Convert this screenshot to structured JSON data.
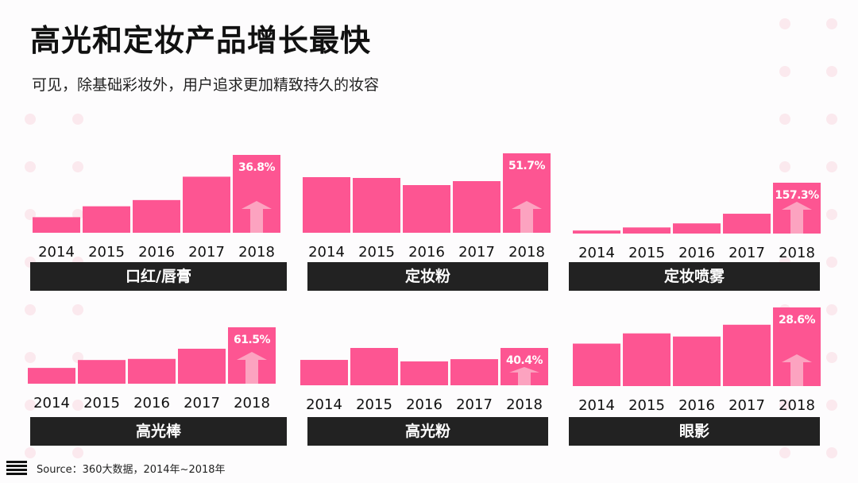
{
  "header": {
    "title": "高光和定妆产品增长最快",
    "subtitle": "可见，除基础彩妆外，用户追求更加精致持久的妆容"
  },
  "footer": {
    "icon": "menu-lines-icon",
    "source": "Source：360大数据，2014年~2018年"
  },
  "colors": {
    "bar": "#fd5592",
    "arrow": "#fca3c0",
    "label_bg": "#222222",
    "dot": "#fbe9ee"
  },
  "chart_data": [
    {
      "type": "bar",
      "title": "口红/唇膏",
      "categories": [
        "2014",
        "2015",
        "2016",
        "2017",
        "2018"
      ],
      "values": [
        20,
        34,
        42,
        72,
        100
      ],
      "units": "relative index (2018 = 100)",
      "annotation": "36.8%",
      "ylim": [
        0,
        100
      ],
      "grid": false
    },
    {
      "type": "bar",
      "title": "定妆粉",
      "categories": [
        "2014",
        "2015",
        "2016",
        "2017",
        "2018"
      ],
      "values": [
        70,
        69,
        60,
        65,
        100
      ],
      "units": "relative index (2018 = 100)",
      "annotation": "51.7%",
      "ylim": [
        0,
        100
      ],
      "grid": false
    },
    {
      "type": "bar",
      "title": "定妆喷雾",
      "categories": [
        "2014",
        "2015",
        "2016",
        "2017",
        "2018"
      ],
      "values": [
        6,
        12,
        20,
        39,
        100
      ],
      "units": "relative index (2018 = 100)",
      "annotation": "157.3%",
      "ylim": [
        0,
        100
      ],
      "grid": false
    },
    {
      "type": "bar",
      "title": "高光棒",
      "categories": [
        "2014",
        "2015",
        "2016",
        "2017",
        "2018"
      ],
      "values": [
        28,
        42,
        44,
        62,
        100
      ],
      "units": "relative index (2018 = 100)",
      "annotation": "61.5%",
      "ylim": [
        0,
        100
      ],
      "grid": false
    },
    {
      "type": "bar",
      "title": "高光粉",
      "categories": [
        "2014",
        "2015",
        "2016",
        "2017",
        "2018"
      ],
      "values": [
        68,
        100,
        64,
        70,
        100
      ],
      "units": "relative index (2018 = 100)",
      "annotation": "40.4%",
      "ylim": [
        0,
        100
      ],
      "grid": false
    },
    {
      "type": "bar",
      "title": "眼影",
      "categories": [
        "2014",
        "2015",
        "2016",
        "2017",
        "2018"
      ],
      "values": [
        54,
        67,
        63,
        78,
        100
      ],
      "units": "relative index (2018 = 100)",
      "annotation": "28.6%",
      "ylim": [
        0,
        100
      ],
      "grid": false
    }
  ]
}
